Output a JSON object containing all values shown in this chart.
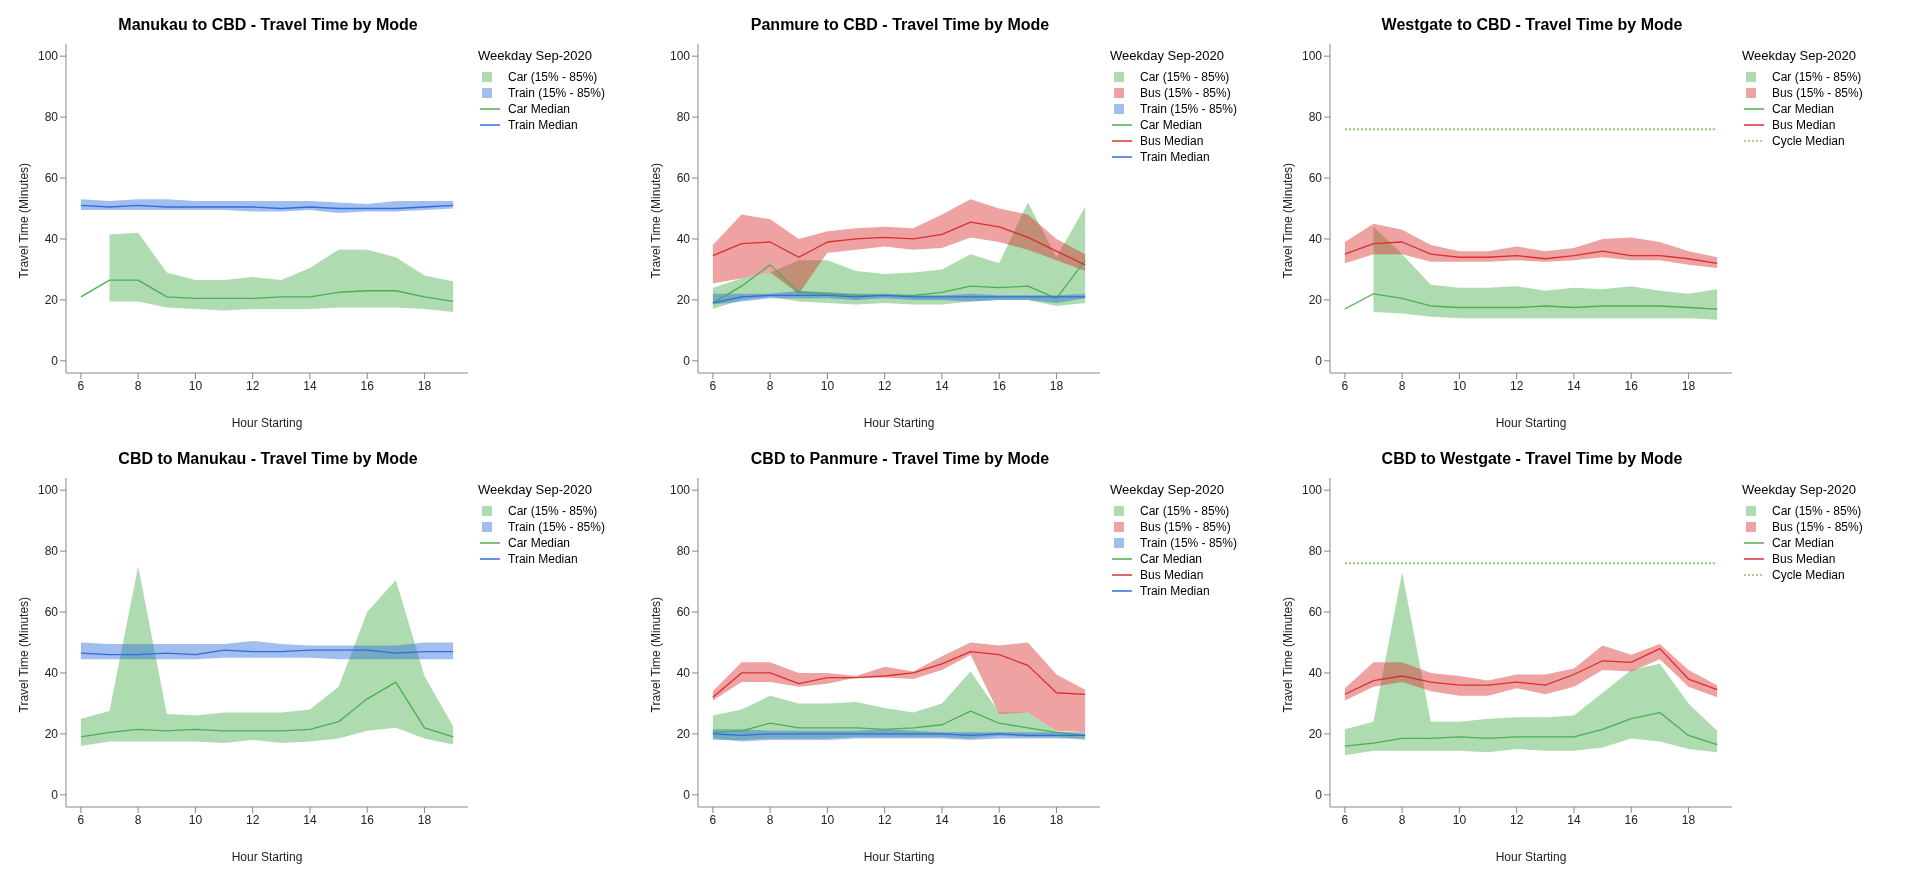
{
  "chart_data": [
    {
      "type": "line",
      "title": "Manukau to CBD - Travel Time by Mode",
      "xlabel": "Hour Starting",
      "ylabel": "Travel Time (Minutes)",
      "legend_title": "Weekday Sep-2020",
      "legend": "right",
      "annotations": [
        "Car (15% - 85%)",
        "Train (15% - 85%)"
      ],
      "x": [
        6,
        7,
        8,
        9,
        10,
        11,
        12,
        13,
        14,
        15,
        16,
        17,
        18,
        19
      ],
      "xlim": [
        5.48,
        19.52
      ],
      "xticks": [
        6,
        8,
        10,
        12,
        14,
        16,
        18
      ],
      "ylim": [
        -4,
        104
      ],
      "yticks": [
        0,
        20,
        40,
        60,
        80,
        100
      ],
      "series": [
        {
          "type": "line",
          "name": "Car Median",
          "color": "#4caf50",
          "values": [
            21,
            26.5,
            26.5,
            21,
            20.5,
            20.5,
            20.5,
            21,
            21,
            22.5,
            23,
            23,
            21,
            19.5
          ],
          "lower": [
            null,
            19.5,
            19.5,
            17.5,
            17,
            16.5,
            17,
            17,
            17,
            17.5,
            17.5,
            17.5,
            17,
            16
          ],
          "upper": [
            null,
            41.5,
            42,
            29,
            26.5,
            26.5,
            27.5,
            26.5,
            30.5,
            36.5,
            36.5,
            34,
            28,
            26
          ]
        },
        {
          "type": "line",
          "name": "Train Median",
          "color": "#2f6fdc",
          "values": [
            51,
            50.5,
            51,
            50.5,
            50.5,
            50.5,
            50.5,
            50,
            50.5,
            50,
            50,
            50,
            50.5,
            51
          ],
          "lower": [
            49.5,
            49.5,
            49.5,
            49.5,
            49.5,
            49.5,
            49,
            49,
            49.5,
            48.5,
            49,
            49,
            49.5,
            50
          ],
          "upper": [
            53,
            52.5,
            53,
            53,
            52.5,
            52.5,
            52.5,
            52.5,
            52.5,
            52,
            51.5,
            52.5,
            52.5,
            52.5
          ]
        }
      ]
    },
    {
      "type": "line",
      "title": "Panmure to CBD - Travel Time by Mode",
      "xlabel": "Hour Starting",
      "ylabel": "Travel Time (Minutes)",
      "legend_title": "Weekday Sep-2020",
      "legend": "right",
      "annotations": [
        "Car (15% - 85%)",
        "Bus (15% - 85%)",
        "Train (15% - 85%)"
      ],
      "x": [
        6,
        7,
        8,
        9,
        10,
        11,
        12,
        13,
        14,
        15,
        16,
        17,
        18,
        19
      ],
      "xlim": [
        5.48,
        19.52
      ],
      "xticks": [
        6,
        8,
        10,
        12,
        14,
        16,
        18
      ],
      "ylim": [
        -4,
        104
      ],
      "yticks": [
        0,
        20,
        40,
        60,
        80,
        100
      ],
      "series": [
        {
          "type": "line",
          "name": "Car Median",
          "color": "#4caf50",
          "values": [
            19,
            24.5,
            31.5,
            22.5,
            22,
            21.5,
            21.5,
            21.5,
            22.5,
            24.5,
            24,
            24.5,
            20.5,
            33
          ],
          "lower": [
            17,
            20,
            21,
            19.5,
            19,
            18.5,
            19,
            18.5,
            18.5,
            19.5,
            20,
            20,
            18,
            19
          ],
          "upper": [
            24,
            27,
            29,
            33,
            33,
            29.5,
            28.5,
            29,
            30,
            35,
            32,
            52,
            34,
            50.5
          ]
        },
        {
          "type": "line",
          "name": "Bus Median",
          "color": "#d93030",
          "values": [
            34.5,
            38.5,
            39,
            34,
            39,
            40,
            40.5,
            40,
            41.5,
            45.5,
            44,
            40.5,
            36,
            31.5
          ],
          "lower": [
            25.5,
            27,
            29,
            22,
            35.5,
            36.5,
            37.5,
            36.5,
            37,
            40.5,
            39,
            36.5,
            33,
            29.5
          ],
          "upper": [
            38,
            48,
            46.5,
            40,
            42.5,
            43.5,
            44,
            43.5,
            48,
            53,
            50,
            48,
            40,
            35
          ]
        },
        {
          "type": "line",
          "name": "Train Median",
          "color": "#2f6fdc",
          "values": [
            19,
            21,
            21.5,
            21.5,
            21.5,
            21,
            21.5,
            21,
            21,
            21,
            21,
            21,
            21,
            21
          ],
          "lower": [
            18.5,
            19.5,
            20.5,
            20.5,
            20.5,
            20,
            20.5,
            20,
            20,
            19.5,
            20,
            20,
            19,
            20.5
          ],
          "upper": [
            22,
            22,
            22,
            23,
            22.5,
            22,
            22,
            21.5,
            21.5,
            22,
            21.5,
            21.5,
            21.5,
            22
          ]
        }
      ]
    },
    {
      "type": "line",
      "title": "Westgate to CBD - Travel Time by Mode",
      "xlabel": "Hour Starting",
      "ylabel": "Travel Time (Minutes)",
      "legend_title": "Weekday Sep-2020",
      "legend": "right",
      "annotations": [
        "Car (15% - 85%)",
        "Bus (15% - 85%)"
      ],
      "x": [
        6,
        7,
        8,
        9,
        10,
        11,
        12,
        13,
        14,
        15,
        16,
        17,
        18,
        19
      ],
      "xlim": [
        5.48,
        19.52
      ],
      "xticks": [
        6,
        8,
        10,
        12,
        14,
        16,
        18
      ],
      "ylim": [
        -4,
        104
      ],
      "yticks": [
        0,
        20,
        40,
        60,
        80,
        100
      ],
      "series": [
        {
          "type": "line",
          "name": "Car Median",
          "color": "#4caf50",
          "values": [
            17,
            22,
            20.5,
            18,
            17.5,
            17.5,
            17.5,
            18,
            17.5,
            18,
            18,
            18,
            17.5,
            17
          ],
          "lower": [
            null,
            16,
            15.5,
            14.5,
            14,
            14,
            14,
            14,
            14,
            14,
            14,
            14,
            14,
            13.5
          ],
          "upper": [
            null,
            44,
            35,
            25,
            24,
            24,
            24.5,
            23,
            24,
            23.5,
            24.5,
            23,
            22,
            23.5
          ]
        },
        {
          "type": "line",
          "name": "Bus Median",
          "color": "#d93030",
          "values": [
            35,
            38.5,
            39,
            35,
            34,
            34,
            34.5,
            33.5,
            34.5,
            36,
            34.5,
            34.5,
            33.5,
            32
          ],
          "lower": [
            32,
            35,
            35,
            32.5,
            32.5,
            32.5,
            33,
            32.5,
            33,
            34,
            33,
            33,
            31.5,
            30.5
          ],
          "upper": [
            39,
            45,
            43,
            38,
            36,
            36,
            37.5,
            36,
            37,
            40,
            40.5,
            39,
            36,
            34
          ]
        },
        {
          "type": "line",
          "name": "Cycle Median",
          "color": "#8cc47c",
          "line_style": "dotted",
          "values": [
            76,
            76,
            76,
            76,
            76,
            76,
            76,
            76,
            76,
            76,
            76,
            76,
            76,
            76
          ]
        }
      ]
    },
    {
      "type": "line",
      "title": "CBD to Manukau - Travel Time by Mode",
      "xlabel": "Hour Starting",
      "ylabel": "Travel Time (Minutes)",
      "legend_title": "Weekday Sep-2020",
      "legend": "right",
      "annotations": [
        "Car (15% - 85%)",
        "Train (15% - 85%)"
      ],
      "x": [
        6,
        7,
        8,
        9,
        10,
        11,
        12,
        13,
        14,
        15,
        16,
        17,
        18,
        19
      ],
      "xlim": [
        5.48,
        19.52
      ],
      "xticks": [
        6,
        8,
        10,
        12,
        14,
        16,
        18
      ],
      "ylim": [
        -4,
        104
      ],
      "yticks": [
        0,
        20,
        40,
        60,
        80,
        100
      ],
      "series": [
        {
          "type": "line",
          "name": "Car Median",
          "color": "#4caf50",
          "values": [
            19,
            20.5,
            21.5,
            21,
            21.5,
            21,
            21,
            21,
            21.5,
            24,
            31.5,
            37,
            22,
            19
          ],
          "lower": [
            16,
            17.5,
            17.5,
            17.5,
            17.5,
            17,
            18,
            17,
            17.5,
            18.5,
            21,
            22,
            18.5,
            16.5
          ],
          "upper": [
            25,
            27.5,
            75,
            26.5,
            26,
            27,
            27,
            27,
            28,
            35.5,
            60,
            70.5,
            39,
            22.5
          ]
        },
        {
          "type": "line",
          "name": "Train Median",
          "color": "#2f6fdc",
          "values": [
            46.5,
            46,
            46,
            46.5,
            46,
            47.5,
            47,
            47,
            47.5,
            47.5,
            47.5,
            46.5,
            47,
            47
          ],
          "lower": [
            44.5,
            44.5,
            44.5,
            44.5,
            44.5,
            45,
            45,
            45,
            45,
            44.5,
            44.5,
            44.5,
            44.5,
            44.5
          ],
          "upper": [
            50,
            49.5,
            49.5,
            49.5,
            49.5,
            49.5,
            50.5,
            49.5,
            49,
            49,
            49,
            49,
            50,
            50
          ]
        }
      ]
    },
    {
      "type": "line",
      "title": "CBD to Panmure - Travel Time by Mode",
      "xlabel": "Hour Starting",
      "ylabel": "Travel Time (Minutes)",
      "legend_title": "Weekday Sep-2020",
      "legend": "right",
      "annotations": [
        "Car (15% - 85%)",
        "Bus (15% - 85%)",
        "Train (15% - 85%)"
      ],
      "x": [
        6,
        7,
        8,
        9,
        10,
        11,
        12,
        13,
        14,
        15,
        16,
        17,
        18,
        19
      ],
      "xlim": [
        5.48,
        19.52
      ],
      "xticks": [
        6,
        8,
        10,
        12,
        14,
        16,
        18
      ],
      "ylim": [
        -4,
        104
      ],
      "yticks": [
        0,
        20,
        40,
        60,
        80,
        100
      ],
      "series": [
        {
          "type": "line",
          "name": "Car Median",
          "color": "#4caf50",
          "values": [
            20.5,
            21,
            23.5,
            22,
            22,
            22,
            21.5,
            22,
            23,
            27.5,
            23.5,
            22,
            20.5,
            19.5
          ],
          "lower": [
            18,
            18,
            18.5,
            18.5,
            18.5,
            19,
            19,
            19,
            19,
            18.5,
            19.5,
            19,
            19,
            18
          ],
          "upper": [
            26,
            28,
            32.5,
            30,
            30,
            30.5,
            28.5,
            27,
            30,
            40.5,
            27,
            27,
            21,
            20
          ]
        },
        {
          "type": "line",
          "name": "Bus Median",
          "color": "#d93030",
          "values": [
            32,
            40,
            40,
            36.5,
            38.5,
            38.5,
            39,
            40,
            43,
            47,
            46,
            42.5,
            33.5,
            33
          ],
          "lower": [
            31,
            37,
            37,
            35.5,
            36.5,
            38.5,
            38.5,
            38,
            41,
            46,
            26.5,
            27,
            21,
            20.5
          ],
          "upper": [
            34,
            43.5,
            43.5,
            40,
            40,
            39,
            42,
            40.5,
            45.5,
            50,
            49,
            50,
            39.5,
            34.5
          ]
        },
        {
          "type": "line",
          "name": "Train Median",
          "color": "#2f6fdc",
          "values": [
            20,
            19.5,
            20,
            20,
            20,
            20,
            20,
            20,
            20,
            19.5,
            20,
            19.5,
            19.5,
            19.5
          ],
          "lower": [
            18.5,
            17.5,
            18,
            18,
            18,
            18.5,
            18.5,
            18.5,
            18.5,
            18,
            18.5,
            18.5,
            18.5,
            18.5
          ],
          "upper": [
            21.5,
            21.5,
            21,
            21,
            21,
            21,
            21.5,
            21,
            20.5,
            20.5,
            20.5,
            20.5,
            20.5,
            20.5
          ]
        }
      ]
    },
    {
      "type": "line",
      "title": "CBD to Westgate - Travel Time by Mode",
      "xlabel": "Hour Starting",
      "ylabel": "Travel Time (Minutes)",
      "legend_title": "Weekday Sep-2020",
      "legend": "right",
      "annotations": [
        "Car (15% - 85%)",
        "Bus (15% - 85%)"
      ],
      "x": [
        6,
        7,
        8,
        9,
        10,
        11,
        12,
        13,
        14,
        15,
        16,
        17,
        18,
        19
      ],
      "xlim": [
        5.48,
        19.52
      ],
      "xticks": [
        6,
        8,
        10,
        12,
        14,
        16,
        18
      ],
      "ylim": [
        -4,
        104
      ],
      "yticks": [
        0,
        20,
        40,
        60,
        80,
        100
      ],
      "series": [
        {
          "type": "line",
          "name": "Car Median",
          "color": "#4caf50",
          "values": [
            16,
            17,
            18.5,
            18.5,
            19,
            18.5,
            19,
            19,
            19,
            21.5,
            25,
            27,
            19.5,
            16.5
          ],
          "lower": [
            13,
            14.5,
            14.5,
            14.5,
            14.5,
            14,
            15,
            14.5,
            14.5,
            15.5,
            18.5,
            17.5,
            15,
            14
          ],
          "upper": [
            21.5,
            24,
            73,
            24,
            24,
            25,
            25.5,
            25.5,
            26,
            33.5,
            41,
            43,
            30,
            21
          ]
        },
        {
          "type": "line",
          "name": "Bus Median",
          "color": "#d93030",
          "values": [
            33,
            37.5,
            39,
            37,
            36,
            36,
            37,
            36,
            39.5,
            44,
            43.5,
            48,
            38,
            34.5
          ],
          "lower": [
            31,
            35.5,
            37,
            34,
            32.5,
            32.5,
            35,
            33,
            35.5,
            41,
            40.5,
            44.5,
            35.5,
            32
          ],
          "upper": [
            35,
            43.5,
            43.5,
            40,
            39,
            37.5,
            39.5,
            39.5,
            41.5,
            49,
            46,
            49.5,
            41,
            36
          ]
        },
        {
          "type": "line",
          "name": "Cycle Median",
          "color": "#8cc47c",
          "line_style": "dotted",
          "values": [
            76,
            76,
            76,
            76,
            76,
            76,
            76,
            76,
            76,
            76,
            76,
            76,
            76,
            76
          ]
        }
      ]
    }
  ]
}
